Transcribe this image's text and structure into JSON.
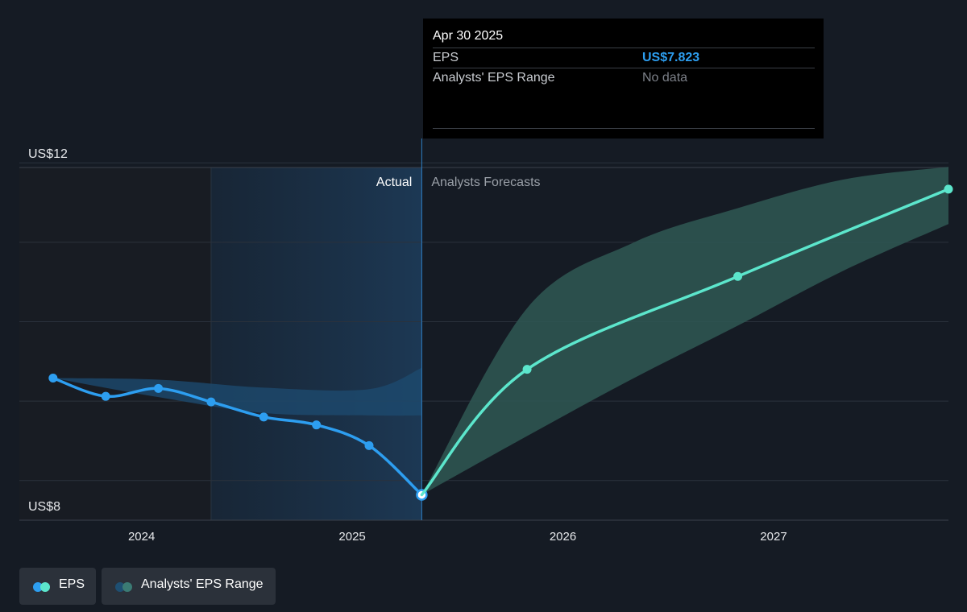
{
  "tooltip": {
    "date": "Apr 30 2025",
    "eps_label": "EPS",
    "eps_value": "US$7.823",
    "range_label": "Analysts' EPS Range",
    "range_value": "No data"
  },
  "legend": {
    "eps_label": "EPS",
    "range_label": "Analysts' EPS Range"
  },
  "colors": {
    "background": "#151b24",
    "actual_line": "#2d9ef0",
    "forecast_line": "#5ce6cc",
    "forecast_band": "#2f5853",
    "actual_band": "#1d4a6e",
    "legend_dot_eps_1": "#2d9ef0",
    "legend_dot_eps_2": "#5ce6cc",
    "legend_dot_range_1": "#1e4f72",
    "legend_dot_range_2": "#3b7b74"
  },
  "chart_data": {
    "type": "line",
    "ylabel_top": "US$12",
    "ylabel_bottom": "US$8",
    "ylim": [
      7.5,
      12.5
    ],
    "xlim": [
      2023.42,
      2027.83
    ],
    "x_ticks": [
      {
        "label": "2024",
        "value": 2024.0
      },
      {
        "label": "2025",
        "value": 2025.0
      },
      {
        "label": "2026",
        "value": 2026.0
      },
      {
        "label": "2027",
        "value": 2027.0
      }
    ],
    "y_grid": [
      8.0,
      9.0,
      10.0,
      11.0,
      12.0
    ],
    "divider_x": 2025.33,
    "highlight_start_x": 2024.33,
    "actual_label": "Actual",
    "forecast_label": "Analysts Forecasts",
    "grid": true,
    "series": [
      {
        "name": "EPS",
        "segment": "actual",
        "points": [
          {
            "x": 2023.58,
            "y": 9.29
          },
          {
            "x": 2023.83,
            "y": 9.06
          },
          {
            "x": 2024.08,
            "y": 9.16
          },
          {
            "x": 2024.33,
            "y": 8.99
          },
          {
            "x": 2024.58,
            "y": 8.8
          },
          {
            "x": 2024.83,
            "y": 8.7
          },
          {
            "x": 2025.08,
            "y": 8.44
          },
          {
            "x": 2025.33,
            "y": 7.82
          }
        ]
      },
      {
        "name": "EPS",
        "segment": "forecast",
        "points": [
          {
            "x": 2025.33,
            "y": 7.82
          },
          {
            "x": 2025.83,
            "y": 9.4
          },
          {
            "x": 2026.83,
            "y": 10.57
          },
          {
            "x": 2027.83,
            "y": 11.67
          }
        ]
      },
      {
        "name": "Analysts' EPS Range",
        "segment": "actual_band",
        "upper": [
          {
            "x": 2023.58,
            "y": 9.29
          },
          {
            "x": 2024.08,
            "y": 9.27
          },
          {
            "x": 2024.58,
            "y": 9.17
          },
          {
            "x": 2025.08,
            "y": 9.15
          },
          {
            "x": 2025.33,
            "y": 9.42
          }
        ],
        "lower": [
          {
            "x": 2023.58,
            "y": 9.29
          },
          {
            "x": 2024.08,
            "y": 9.05
          },
          {
            "x": 2024.58,
            "y": 8.85
          },
          {
            "x": 2025.08,
            "y": 8.82
          },
          {
            "x": 2025.33,
            "y": 8.82
          }
        ]
      },
      {
        "name": "Analysts' EPS Range",
        "segment": "forecast_band",
        "upper": [
          {
            "x": 2025.33,
            "y": 7.82
          },
          {
            "x": 2025.83,
            "y": 10.17
          },
          {
            "x": 2026.33,
            "y": 10.99
          },
          {
            "x": 2026.83,
            "y": 11.43
          },
          {
            "x": 2027.33,
            "y": 11.79
          },
          {
            "x": 2027.83,
            "y": 11.95
          }
        ],
        "lower": [
          {
            "x": 2025.33,
            "y": 7.82
          },
          {
            "x": 2025.83,
            "y": 8.56
          },
          {
            "x": 2026.33,
            "y": 9.28
          },
          {
            "x": 2026.83,
            "y": 9.95
          },
          {
            "x": 2027.33,
            "y": 10.64
          },
          {
            "x": 2027.83,
            "y": 11.23
          }
        ]
      }
    ]
  }
}
